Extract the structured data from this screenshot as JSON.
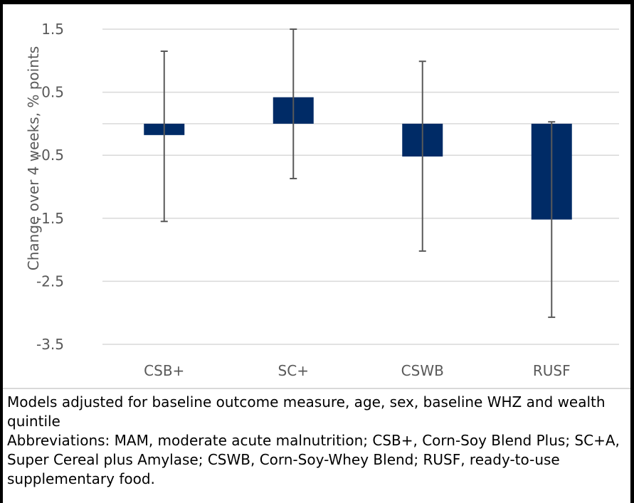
{
  "chart_data": {
    "type": "bar",
    "categories": [
      "CSB+",
      "SC+",
      "CSWB",
      "RUSF"
    ],
    "values": [
      -0.18,
      0.42,
      -0.52,
      -1.52
    ],
    "error_low": [
      -1.55,
      -0.87,
      -2.02,
      -3.07
    ],
    "error_high": [
      1.15,
      1.5,
      0.99,
      0.03
    ],
    "ylabel": "Change over 4 weeks, % points",
    "ylim": [
      -3.5,
      1.5
    ],
    "yticks": [
      "1.5",
      "0.5",
      "-0.5",
      "-1.5",
      "-2.5",
      "-3.5"
    ],
    "ytick_values": [
      1.5,
      0.5,
      -0.5,
      -1.5,
      -2.5,
      -3.5
    ],
    "grid": true,
    "colors": {
      "bar": "#002b66",
      "error": "#595959",
      "grid": "#d9d9d9",
      "text": "#595959"
    }
  },
  "footnote": {
    "line1": "Models adjusted for baseline outcome measure, age, sex, baseline WHZ and wealth quintile",
    "line2": "Abbreviations: MAM, moderate acute malnutrition; CSB+, Corn-Soy Blend Plus; SC+A, Super Cereal plus Amylase; CSWB, Corn-Soy-Whey Blend; RUSF, ready-to-use supplementary food."
  }
}
